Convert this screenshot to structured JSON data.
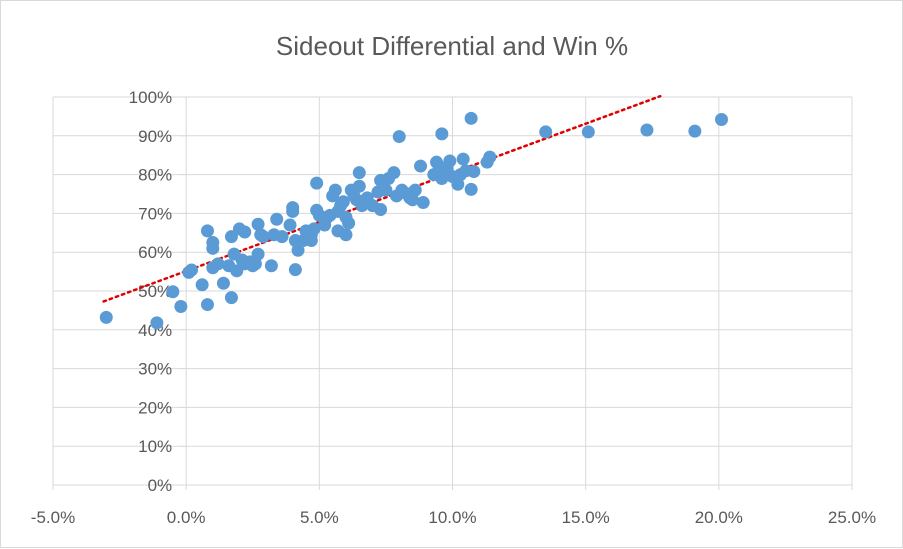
{
  "chart_data": {
    "type": "scatter",
    "title": "Sideout Differential and Win %",
    "xlabel": "",
    "ylabel": "",
    "xlim": [
      -0.05,
      0.25
    ],
    "ylim": [
      0,
      1
    ],
    "x_ticks": [
      -0.05,
      0,
      0.05,
      0.1,
      0.15,
      0.2,
      0.25
    ],
    "x_tick_labels": [
      "-5.0%",
      "0.0%",
      "5.0%",
      "10.0%",
      "15.0%",
      "20.0%",
      "25.0%"
    ],
    "y_ticks": [
      0,
      0.1,
      0.2,
      0.3,
      0.4,
      0.5,
      0.6,
      0.7,
      0.8,
      0.9,
      1.0
    ],
    "y_tick_labels": [
      "0%",
      "10%",
      "20%",
      "30%",
      "40%",
      "50%",
      "60%",
      "70%",
      "80%",
      "90%",
      "100%"
    ],
    "grid": true,
    "colors": {
      "points": "#5B9BD5",
      "trendline": "#E00000",
      "grid": "#d9d9d9",
      "axis": "#d9d9d9",
      "text": "#595959"
    },
    "series": [
      {
        "points": [
          [
            -0.03,
            0.432
          ],
          [
            -0.011,
            0.418
          ],
          [
            -0.005,
            0.498
          ],
          [
            -0.002,
            0.46
          ],
          [
            0.001,
            0.548
          ],
          [
            0.002,
            0.554
          ],
          [
            0.006,
            0.516
          ],
          [
            0.008,
            0.655
          ],
          [
            0.008,
            0.465
          ],
          [
            0.01,
            0.625
          ],
          [
            0.01,
            0.61
          ],
          [
            0.01,
            0.56
          ],
          [
            0.012,
            0.57
          ],
          [
            0.014,
            0.52
          ],
          [
            0.016,
            0.565
          ],
          [
            0.017,
            0.64
          ],
          [
            0.017,
            0.483
          ],
          [
            0.018,
            0.595
          ],
          [
            0.019,
            0.552
          ],
          [
            0.02,
            0.66
          ],
          [
            0.021,
            0.58
          ],
          [
            0.022,
            0.57
          ],
          [
            0.022,
            0.652
          ],
          [
            0.024,
            0.575
          ],
          [
            0.025,
            0.565
          ],
          [
            0.026,
            0.57
          ],
          [
            0.027,
            0.595
          ],
          [
            0.027,
            0.672
          ],
          [
            0.028,
            0.645
          ],
          [
            0.029,
            0.64
          ],
          [
            0.032,
            0.565
          ],
          [
            0.033,
            0.645
          ],
          [
            0.034,
            0.685
          ],
          [
            0.036,
            0.64
          ],
          [
            0.039,
            0.67
          ],
          [
            0.04,
            0.705
          ],
          [
            0.04,
            0.715
          ],
          [
            0.041,
            0.555
          ],
          [
            0.041,
            0.63
          ],
          [
            0.042,
            0.605
          ],
          [
            0.044,
            0.63
          ],
          [
            0.045,
            0.655
          ],
          [
            0.047,
            0.63
          ],
          [
            0.047,
            0.645
          ],
          [
            0.048,
            0.66
          ],
          [
            0.049,
            0.778
          ],
          [
            0.049,
            0.708
          ],
          [
            0.05,
            0.695
          ],
          [
            0.052,
            0.67
          ],
          [
            0.053,
            0.69
          ],
          [
            0.054,
            0.695
          ],
          [
            0.055,
            0.745
          ],
          [
            0.056,
            0.76
          ],
          [
            0.057,
            0.705
          ],
          [
            0.057,
            0.655
          ],
          [
            0.058,
            0.72
          ],
          [
            0.059,
            0.73
          ],
          [
            0.06,
            0.645
          ],
          [
            0.06,
            0.69
          ],
          [
            0.061,
            0.675
          ],
          [
            0.062,
            0.76
          ],
          [
            0.063,
            0.745
          ],
          [
            0.064,
            0.735
          ],
          [
            0.065,
            0.77
          ],
          [
            0.065,
            0.805
          ],
          [
            0.066,
            0.72
          ],
          [
            0.068,
            0.74
          ],
          [
            0.07,
            0.72
          ],
          [
            0.072,
            0.755
          ],
          [
            0.073,
            0.785
          ],
          [
            0.073,
            0.71
          ],
          [
            0.074,
            0.775
          ],
          [
            0.075,
            0.76
          ],
          [
            0.076,
            0.79
          ],
          [
            0.078,
            0.805
          ],
          [
            0.079,
            0.745
          ],
          [
            0.08,
            0.898
          ],
          [
            0.081,
            0.76
          ],
          [
            0.083,
            0.75
          ],
          [
            0.084,
            0.74
          ],
          [
            0.085,
            0.735
          ],
          [
            0.086,
            0.76
          ],
          [
            0.088,
            0.822
          ],
          [
            0.089,
            0.728
          ],
          [
            0.093,
            0.8
          ],
          [
            0.094,
            0.832
          ],
          [
            0.095,
            0.82
          ],
          [
            0.096,
            0.905
          ],
          [
            0.096,
            0.79
          ],
          [
            0.098,
            0.815
          ],
          [
            0.099,
            0.835
          ],
          [
            0.1,
            0.795
          ],
          [
            0.102,
            0.775
          ],
          [
            0.103,
            0.8
          ],
          [
            0.104,
            0.84
          ],
          [
            0.105,
            0.81
          ],
          [
            0.107,
            0.945
          ],
          [
            0.107,
            0.762
          ],
          [
            0.108,
            0.808
          ],
          [
            0.113,
            0.832
          ],
          [
            0.114,
            0.845
          ],
          [
            0.135,
            0.91
          ],
          [
            0.151,
            0.91
          ],
          [
            0.173,
            0.915
          ],
          [
            0.191,
            0.912
          ],
          [
            0.201,
            0.942
          ]
        ]
      }
    ],
    "trendline": {
      "style": "dotted",
      "x": [
        -0.031,
        0.178
      ],
      "y": [
        0.473,
        1.002
      ]
    }
  }
}
